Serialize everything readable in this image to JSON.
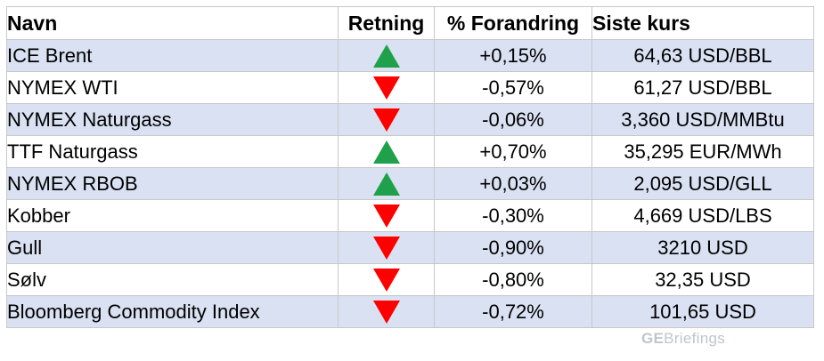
{
  "table": {
    "headers": {
      "name": "Navn",
      "direction": "Retning",
      "change": "% Forandring",
      "price": "Siste kurs"
    },
    "rows": [
      {
        "name": "ICE Brent",
        "direction": "up",
        "direction_icon": "triangle-up-icon",
        "change": "+0,15%",
        "price": "64,63 USD/BBL"
      },
      {
        "name": "NYMEX WTI",
        "direction": "down",
        "direction_icon": "triangle-down-icon",
        "change": "-0,57%",
        "price": "61,27 USD/BBL"
      },
      {
        "name": "NYMEX Naturgass",
        "direction": "down",
        "direction_icon": "triangle-down-icon",
        "change": "-0,06%",
        "price": "3,360 USD/MMBtu"
      },
      {
        "name": "TTF Naturgass",
        "direction": "up",
        "direction_icon": "triangle-up-icon",
        "change": "+0,70%",
        "price": "35,295 EUR/MWh"
      },
      {
        "name": "NYMEX RBOB",
        "direction": "up",
        "direction_icon": "triangle-up-icon",
        "change": "+0,03%",
        "price": "2,095 USD/GLL"
      },
      {
        "name": "Kobber",
        "direction": "down",
        "direction_icon": "triangle-down-icon",
        "change": "-0,30%",
        "price": "4,669 USD/LBS"
      },
      {
        "name": "Gull",
        "direction": "down",
        "direction_icon": "triangle-down-icon",
        "change": "-0,90%",
        "price": "3210 USD"
      },
      {
        "name": "Sølv",
        "direction": "down",
        "direction_icon": "triangle-down-icon",
        "change": "-0,80%",
        "price": "32,35 USD"
      },
      {
        "name": "Bloomberg Commodity Index",
        "direction": "down",
        "direction_icon": "triangle-down-icon",
        "change": "-0,72%",
        "price": "101,65 USD"
      }
    ]
  },
  "colors": {
    "up": "#1fa04a",
    "down": "#ff0000",
    "row_shade": "#d9e1f2"
  },
  "watermark": {
    "prefix": "GE",
    "suffix": "Briefings"
  }
}
